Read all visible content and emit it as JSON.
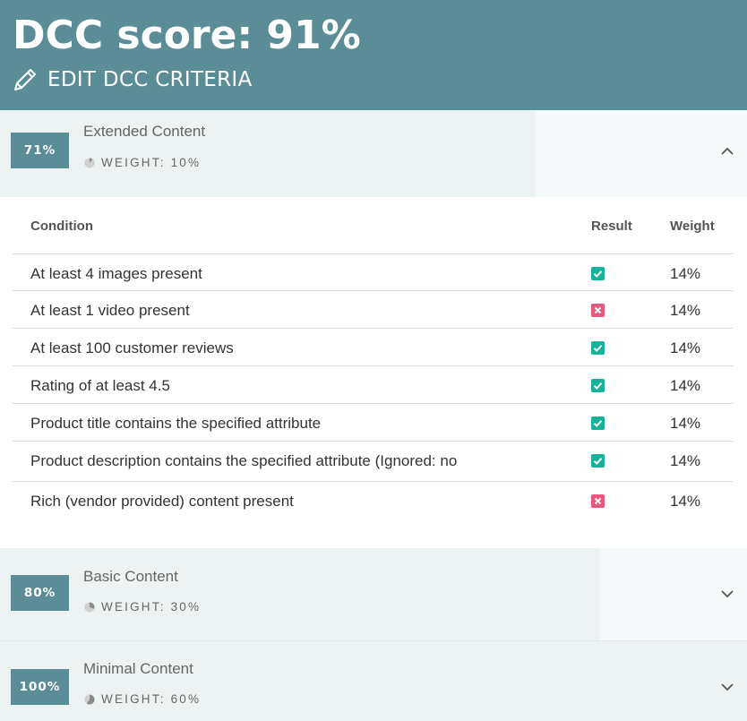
{
  "header": {
    "score_title": "DCC score: 91%",
    "edit_label": "EDIT DCC CRITERIA",
    "edit_icon": "pencil-icon"
  },
  "sections": [
    {
      "badge": "71%",
      "title": "Extended Content",
      "weight": "WEIGHT: 10%",
      "weight_fraction": 0.1,
      "expanded": true,
      "chevron": "chevron-up-icon"
    },
    {
      "badge": "80%",
      "title": "Basic Content",
      "weight": "WEIGHT: 30%",
      "weight_fraction": 0.3,
      "expanded": false,
      "chevron": "chevron-down-icon"
    },
    {
      "badge": "100%",
      "title": "Minimal Content",
      "weight": "WEIGHT: 60%",
      "weight_fraction": 0.6,
      "expanded": false,
      "chevron": "chevron-down-icon"
    }
  ],
  "table": {
    "headers": {
      "condition": "Condition",
      "result": "Result",
      "weight": "Weight"
    },
    "rows": [
      {
        "condition": "At least 4 images present",
        "result": "pass",
        "weight": "14%"
      },
      {
        "condition": "At least 1 video present",
        "result": "fail",
        "weight": "14%"
      },
      {
        "condition": "At least 100 customer reviews",
        "result": "pass",
        "weight": "14%"
      },
      {
        "condition": "Rating of at least 4.5",
        "result": "pass",
        "weight": "14%"
      },
      {
        "condition": "Product title contains the specified attribute",
        "result": "pass",
        "weight": "14%"
      },
      {
        "condition": "Product description contains the specified attribute (Ignored: no",
        "result": "pass",
        "weight": "14%"
      },
      {
        "condition": "Rich (vendor provided) content present",
        "result": "fail",
        "weight": "14%"
      }
    ]
  },
  "colors": {
    "header_bg": "#5a8d96",
    "badge_bg": "#5a8d96",
    "pass": "#16b29a",
    "fail": "#e8577c",
    "section_bg": "#edf3f3"
  }
}
